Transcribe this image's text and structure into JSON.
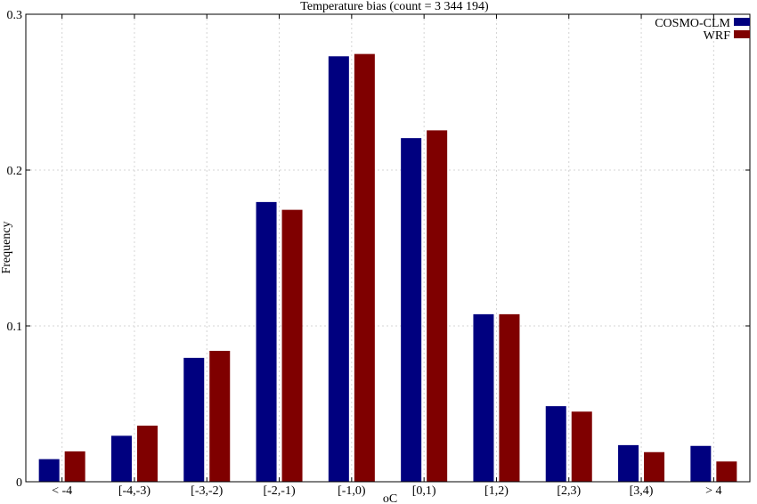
{
  "chart_data": {
    "type": "bar",
    "title": "Temperature bias (count = 3 344 194)",
    "xlabel": "oC",
    "ylabel": "Frequency",
    "ylim": [
      0,
      0.3
    ],
    "y_ticks": [
      "0",
      "0.1",
      "0.2",
      "0.3"
    ],
    "y_tick_values": [
      0,
      0.1,
      0.2,
      0.3
    ],
    "grid": true,
    "legend_position": "top-right",
    "categories": [
      "< -4",
      "[-4,-3)",
      "[-3,-2)",
      "[-2,-1)",
      "[-1,0)",
      "[0,1)",
      "[1,2)",
      "[2,3)",
      "[3,4)",
      "> 4"
    ],
    "series": [
      {
        "name": "COSMO-CLM",
        "color": "#00007f",
        "values": [
          0.0145,
          0.0295,
          0.0795,
          0.1795,
          0.273,
          0.2205,
          0.1075,
          0.0485,
          0.0235,
          0.023
        ]
      },
      {
        "name": "WRF",
        "color": "#7f0000",
        "values": [
          0.0195,
          0.036,
          0.084,
          0.1745,
          0.2745,
          0.2255,
          0.1075,
          0.045,
          0.019,
          0.013
        ]
      }
    ]
  }
}
